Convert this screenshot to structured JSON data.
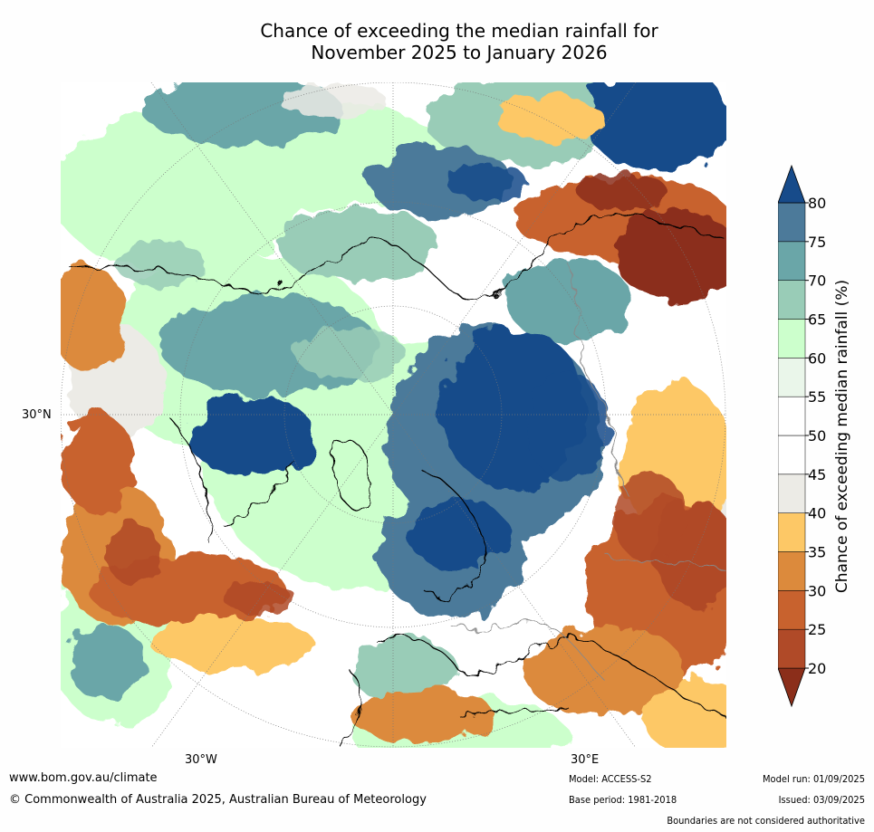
{
  "title_line1": "Chance of exceeding the median rainfall for",
  "title_line2": "November 2025 to January 2026",
  "map": {
    "projection": "north-polar-stereographic",
    "labels": {
      "lat30n": "30°N",
      "lon30w": "30°W",
      "lon30e": "30°E"
    }
  },
  "colorbar": {
    "label": "Chance of exceeding median rainfall (%)",
    "ticks": [
      "20",
      "25",
      "30",
      "35",
      "40",
      "45",
      "50",
      "55",
      "60",
      "65",
      "70",
      "75",
      "80"
    ],
    "colors": [
      "#8b2e1a",
      "#b04a28",
      "#c8622e",
      "#dc8a3c",
      "#fdc866",
      "#ecebe6",
      "#ffffff",
      "#ffffff",
      "#eaf6ea",
      "#ccffcc",
      "#99ccb7",
      "#6aa6a8",
      "#4c7a9a",
      "#174b8a"
    ]
  },
  "footer": {
    "website": "www.bom.gov.au/climate",
    "copyright": "© Commonwealth of Australia 2025, Australian Bureau of Meteorology",
    "model": "Model: ACCESS-S2",
    "base_period": "Base period: 1981-2018",
    "model_run": "Model run: 01/09/2025",
    "issued": "Issued: 03/09/2025",
    "disclaimer": "Boundaries are not considered authoritative"
  }
}
